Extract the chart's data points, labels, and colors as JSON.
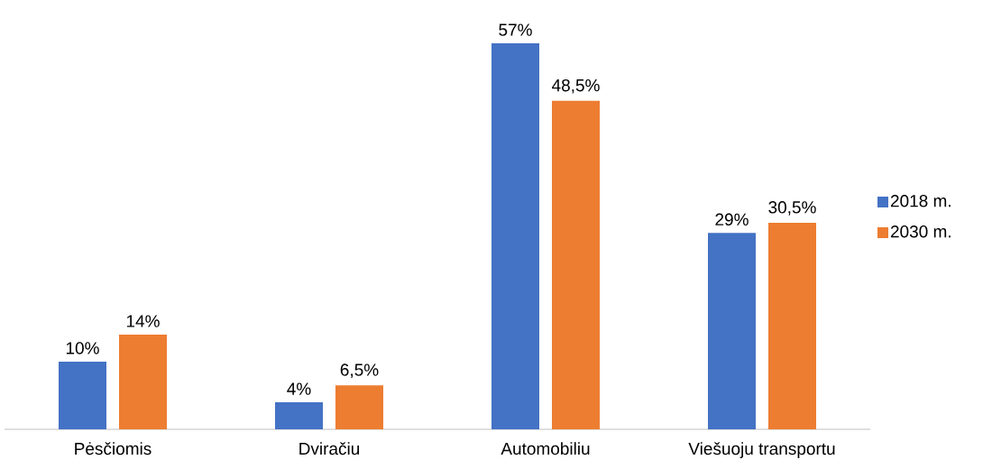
{
  "chart_data": {
    "type": "bar",
    "categories": [
      "Pėsčiomis",
      "Dviračiu",
      "Automobiliu",
      "Viešuoju transportu"
    ],
    "series": [
      {
        "name": "2018 m.",
        "color": "#4472c4",
        "values": [
          10,
          4,
          57,
          29
        ],
        "value_labels": [
          "10%",
          "4%",
          "57%",
          "29%"
        ]
      },
      {
        "name": "2030 m.",
        "color": "#ed7d31",
        "values": [
          14,
          6.5,
          48.5,
          30.5
        ],
        "value_labels": [
          "14%",
          "6,5%",
          "48,5%",
          "30,5%"
        ]
      }
    ],
    "legend": "right"
  }
}
